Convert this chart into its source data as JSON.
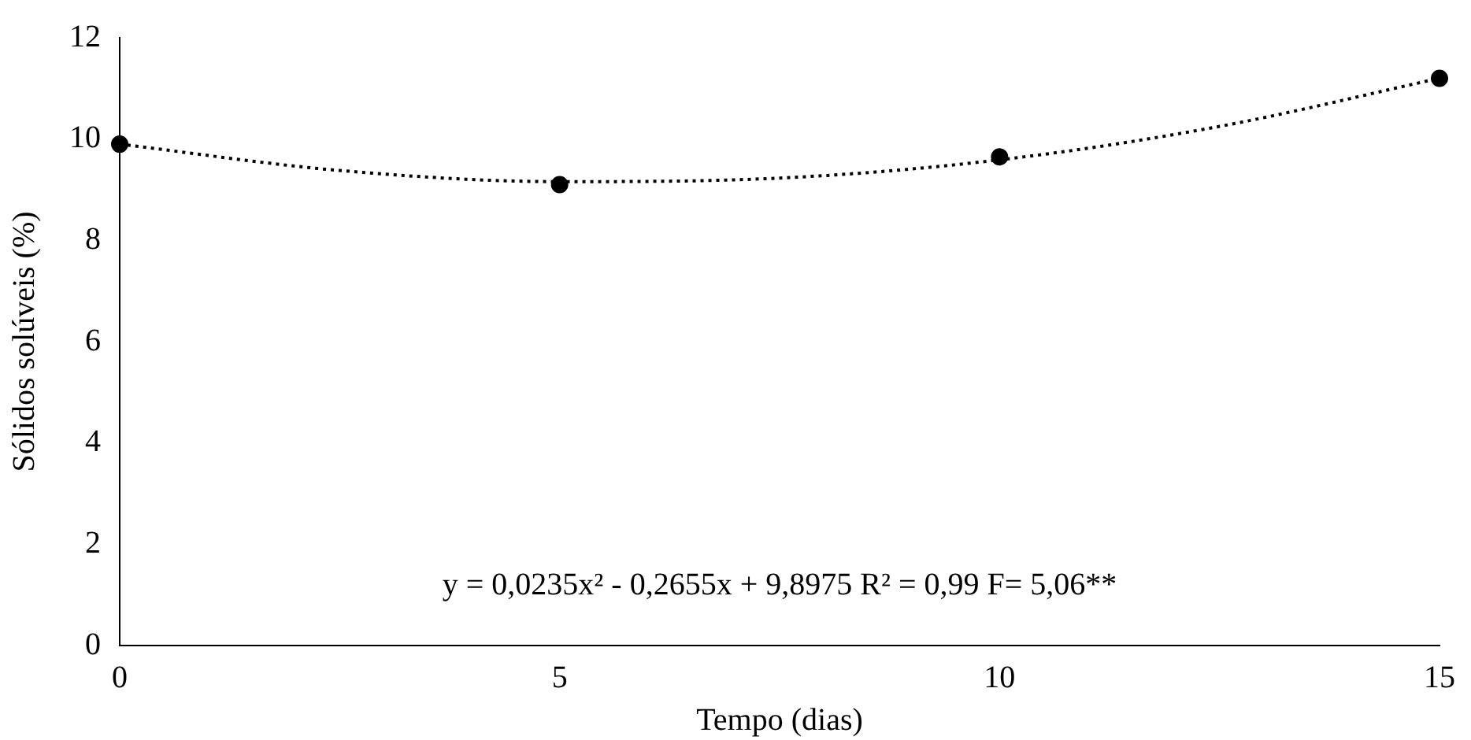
{
  "chart_data": {
    "type": "scatter",
    "xlabel": "Tempo (dias)",
    "ylabel": "Sólidos solúveis (%)",
    "xlim": [
      0,
      15
    ],
    "xticks": [
      0,
      5,
      10,
      15
    ],
    "ylim": [
      0,
      12
    ],
    "yticks": [
      0,
      2,
      4,
      6,
      8,
      10,
      12
    ],
    "series": [
      {
        "marker": "circle",
        "color": "#000000",
        "x": [
          0,
          5,
          10,
          15
        ],
        "values": [
          9.9,
          9.1,
          9.65,
          11.2
        ]
      },
      {
        "type": "line",
        "marker": "none",
        "color": "#000000",
        "line_style": "dotted",
        "x": [
          0,
          2.5,
          5,
          7.5,
          10,
          12.5,
          15
        ],
        "values": [
          9.9,
          9.38,
          9.16,
          9.23,
          9.59,
          10.25,
          11.2
        ]
      }
    ],
    "annotations": [
      "y = 0,0235x² - 0,2655x + 9,8975 R² = 0,99 F= 5,06**"
    ]
  }
}
